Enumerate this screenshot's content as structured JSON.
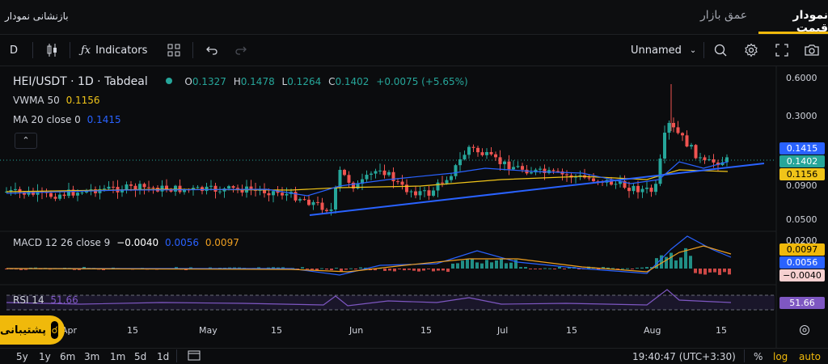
{
  "header": {
    "left_title": "بازنشانی نمودار",
    "tabs": [
      {
        "label": "نمودار قیمت",
        "active": true
      },
      {
        "label": "عمق بازار",
        "active": false
      }
    ]
  },
  "toolbar": {
    "interval": "D",
    "indicators_label": "Indicators",
    "layout_name": "Unnamed"
  },
  "legend": {
    "symbol": "HEI/USDT · 1D · Tabdeal",
    "o_label": "O",
    "o_value": "0.1327",
    "h_label": "H",
    "h_value": "0.1478",
    "l_label": "L",
    "l_value": "0.1264",
    "c_label": "C",
    "c_value": "0.1402",
    "change": "+0.0075 (+5.65%)",
    "vwma_label": "VWMA 50",
    "vwma_value": "0.1156",
    "ma_label": "MA 20 close 0",
    "ma_value": "0.1415",
    "macd_label": "MACD 12 26 close 9",
    "macd_v1": "−0.0040",
    "macd_v2": "0.0056",
    "macd_v3": "0.0097",
    "rsi_label": "RSI 14",
    "rsi_value": "51.66"
  },
  "price_axis": [
    "0.6000",
    "0.3000",
    "0.0900",
    "0.0500"
  ],
  "macd_axis": [
    "0.0200"
  ],
  "badges": {
    "ma": "0.1415",
    "close": "0.1402",
    "vwma": "0.1156",
    "macd_signal": "0.0097",
    "macd_line": "0.0056",
    "macd_hist": "−0.0040",
    "rsi": "51.66"
  },
  "time_axis": [
    "Apr",
    "15",
    "May",
    "15",
    "Jun",
    "15",
    "Jul",
    "15",
    "Aug",
    "15"
  ],
  "bottom": {
    "ranges": [
      "5y",
      "1y",
      "6m",
      "3m",
      "1m",
      "5d",
      "1d"
    ],
    "clock": "19:40:47 (UTC+3:30)",
    "percent": "%",
    "log": "log",
    "auto": "auto"
  },
  "support_label": "پشتیبانی",
  "colors": {
    "up": "#26a69a",
    "down": "#ef5350",
    "accent": "#f0b90b",
    "ma": "#2962ff",
    "vwma": "#f0c419",
    "rsi": "#7e57c2"
  }
}
